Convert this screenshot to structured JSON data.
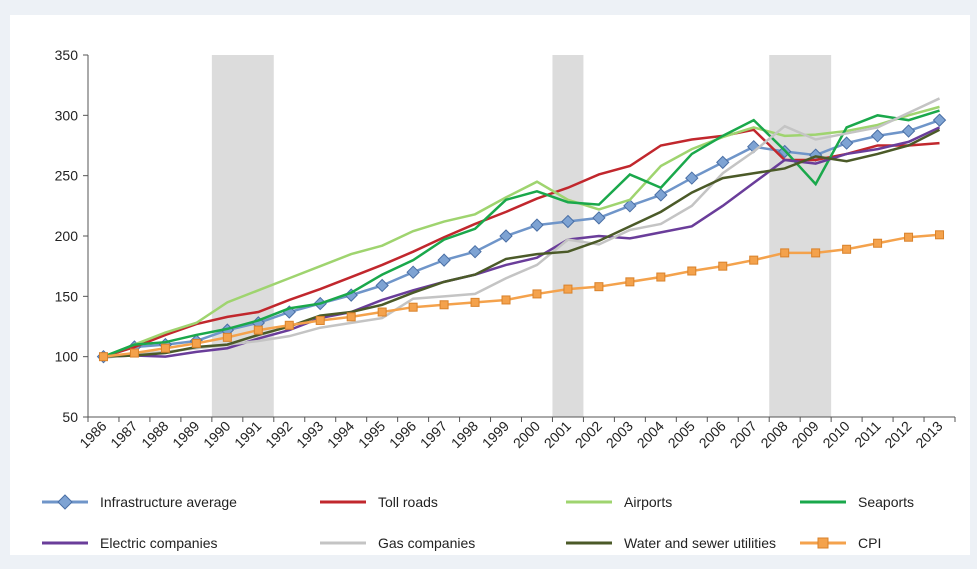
{
  "chart_data": {
    "type": "line",
    "categories": [
      "1986",
      "1987",
      "1988",
      "1989",
      "1990",
      "1991",
      "1992",
      "1993",
      "1994",
      "1995",
      "1996",
      "1997",
      "1998",
      "1999",
      "2000",
      "2001",
      "2002",
      "2003",
      "2004",
      "2005",
      "2006",
      "2007",
      "2008",
      "2009",
      "2010",
      "2011",
      "2012",
      "2013"
    ],
    "shaded": [
      [
        "1990",
        "1991"
      ],
      [
        "2001",
        "2001"
      ],
      [
        "2008",
        "2009"
      ]
    ],
    "ylim": [
      50,
      350
    ],
    "yticks": [
      50,
      100,
      150,
      200,
      250,
      300,
      350
    ],
    "series": [
      {
        "name": "Infrastructure average",
        "color": "#6f95c9",
        "marker": "diamond",
        "values": [
          100,
          108,
          110,
          113,
          122,
          128,
          137,
          144,
          151,
          159,
          170,
          180,
          187,
          200,
          209,
          212,
          215,
          225,
          234,
          248,
          261,
          274,
          270,
          267,
          277,
          283,
          287,
          296
        ]
      },
      {
        "name": "Toll roads",
        "color": "#c1272d",
        "values": [
          100,
          108,
          118,
          127,
          133,
          137,
          147,
          156,
          166,
          176,
          187,
          199,
          210,
          220,
          231,
          240,
          251,
          258,
          275,
          280,
          283,
          288,
          263,
          263,
          268,
          275,
          275,
          277
        ]
      },
      {
        "name": "Airports",
        "color": "#9fd46f",
        "values": [
          100,
          110,
          120,
          128,
          145,
          155,
          165,
          175,
          185,
          192,
          204,
          212,
          218,
          232,
          245,
          230,
          222,
          230,
          258,
          272,
          282,
          290,
          283,
          284,
          287,
          292,
          300,
          307
        ]
      },
      {
        "name": "Seaports",
        "color": "#1aa84b",
        "values": [
          100,
          110,
          112,
          118,
          123,
          130,
          140,
          144,
          153,
          168,
          180,
          197,
          206,
          230,
          237,
          228,
          226,
          251,
          240,
          268,
          283,
          296,
          271,
          243,
          290,
          300,
          296,
          304
        ]
      },
      {
        "name": "Electric companies",
        "color": "#6a3d9a",
        "values": [
          100,
          101,
          100,
          104,
          107,
          115,
          122,
          132,
          137,
          147,
          155,
          162,
          168,
          176,
          182,
          197,
          200,
          198,
          203,
          208,
          225,
          244,
          263,
          260,
          268,
          272,
          278,
          290
        ]
      },
      {
        "name": "Gas companies",
        "color": "#c4c4c4",
        "values": [
          99,
          102,
          104,
          107,
          110,
          113,
          117,
          124,
          128,
          132,
          148,
          150,
          152,
          165,
          176,
          197,
          193,
          205,
          210,
          225,
          252,
          270,
          291,
          280,
          285,
          290,
          302,
          314
        ]
      },
      {
        "name": "Water and sewer utilities",
        "color": "#4b5a28",
        "values": [
          100,
          101,
          103,
          108,
          110,
          118,
          125,
          134,
          137,
          143,
          153,
          162,
          168,
          181,
          185,
          187,
          196,
          208,
          220,
          236,
          248,
          252,
          256,
          266,
          262,
          268,
          275,
          288
        ]
      },
      {
        "name": "CPI",
        "color": "#f4a24c",
        "marker": "square",
        "values": [
          100,
          103,
          107,
          111,
          116,
          122,
          126,
          130,
          133,
          137,
          141,
          143,
          145,
          147,
          152,
          156,
          158,
          162,
          166,
          171,
          175,
          180,
          186,
          186,
          189,
          194,
          199,
          201
        ]
      }
    ]
  }
}
